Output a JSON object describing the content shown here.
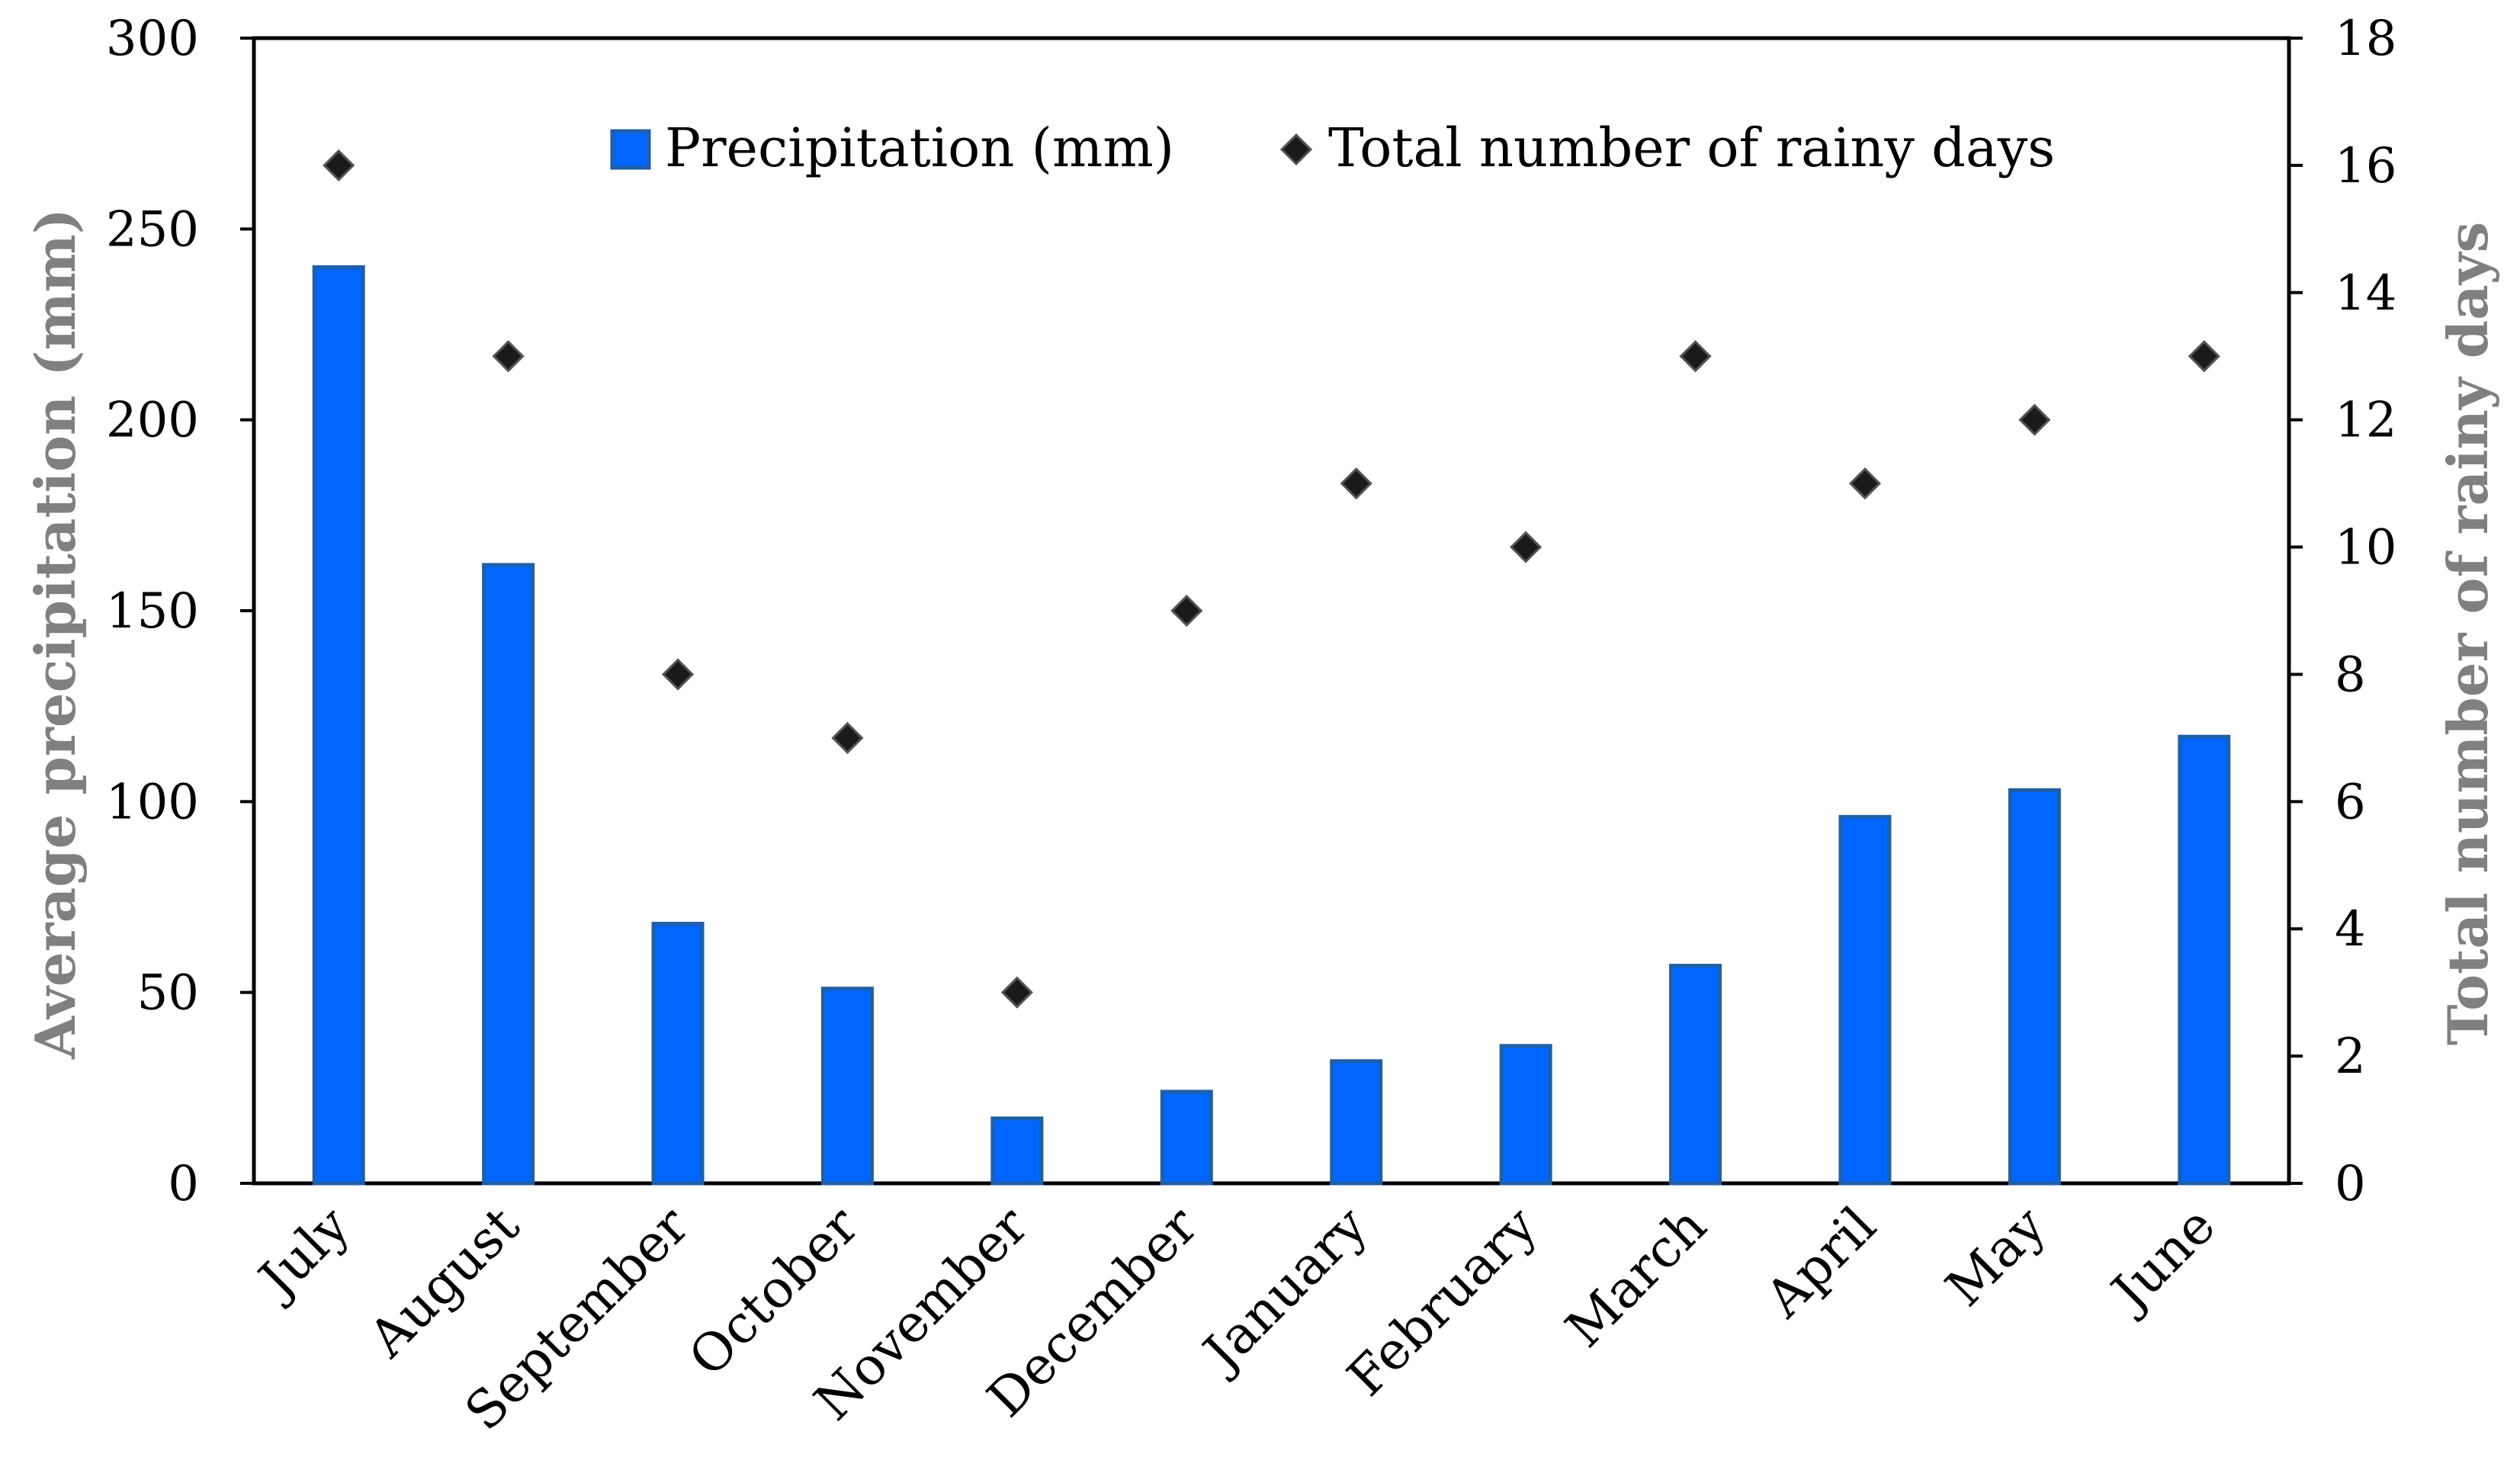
{
  "chart_data": {
    "type": "bar",
    "categories": [
      "July",
      "August",
      "September",
      "October",
      "November",
      "December",
      "January",
      "February",
      "March",
      "April",
      "May",
      "June"
    ],
    "series": [
      {
        "name": "Precipitation (mm)",
        "type": "bar",
        "axis": "left",
        "values": [
          240,
          162,
          68,
          51,
          17,
          24,
          32,
          36,
          57,
          96,
          103,
          117
        ],
        "color": "#0066ff",
        "edge_color": "#1f5fa8"
      },
      {
        "name": "Total number of rainy days",
        "type": "scatter",
        "marker": "diamond",
        "axis": "right",
        "values": [
          16,
          13,
          8,
          7,
          3,
          9,
          11,
          10,
          13,
          11,
          12,
          13
        ],
        "color": "#1a1a1a"
      }
    ],
    "ylabel": "Average precipitation (mm)",
    "ylabel_right": "Total number of rainy days",
    "ylim": [
      0,
      300
    ],
    "ylim_right": [
      0,
      18
    ],
    "yticks": [
      "0",
      "50",
      "100",
      "150",
      "200",
      "250",
      "300"
    ],
    "yticks_right": [
      "0",
      "2",
      "4",
      "6",
      "8",
      "10",
      "12",
      "14",
      "16",
      "18"
    ],
    "legend_position": "top-center",
    "grid": false,
    "axis_title_color": "#808080"
  }
}
